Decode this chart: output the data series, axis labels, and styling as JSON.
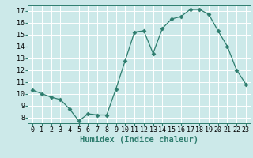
{
  "x": [
    0,
    1,
    2,
    3,
    4,
    5,
    6,
    7,
    8,
    9,
    10,
    11,
    12,
    13,
    14,
    15,
    16,
    17,
    18,
    19,
    20,
    21,
    22,
    23
  ],
  "y": [
    10.3,
    10.0,
    9.7,
    9.5,
    8.7,
    7.7,
    8.3,
    8.2,
    8.2,
    10.4,
    12.8,
    15.2,
    15.3,
    13.4,
    15.5,
    16.3,
    16.5,
    17.1,
    17.1,
    16.7,
    15.3,
    14.0,
    12.0,
    10.8
  ],
  "line_color": "#2e7d6e",
  "marker": "D",
  "marker_size": 2.5,
  "bg_color": "#cce9e9",
  "grid_color": "#ffffff",
  "xlabel": "Humidex (Indice chaleur)",
  "xlim": [
    -0.5,
    23.5
  ],
  "ylim": [
    7.5,
    17.5
  ],
  "yticks": [
    8,
    9,
    10,
    11,
    12,
    13,
    14,
    15,
    16,
    17
  ],
  "xticks": [
    0,
    1,
    2,
    3,
    4,
    5,
    6,
    7,
    8,
    9,
    10,
    11,
    12,
    13,
    14,
    15,
    16,
    17,
    18,
    19,
    20,
    21,
    22,
    23
  ],
  "tick_fontsize": 6,
  "label_fontsize": 7.5
}
